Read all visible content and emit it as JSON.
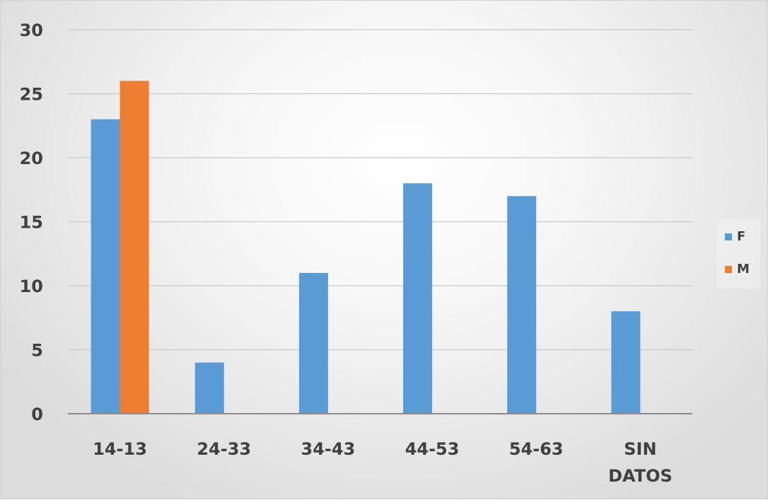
{
  "chart_data": {
    "type": "bar",
    "title": "",
    "xlabel": "",
    "ylabel": "",
    "categories": [
      "14-13",
      "24-33",
      "34-43",
      "44-53",
      "54-63",
      "SIN DATOS"
    ],
    "series": [
      {
        "name": "F",
        "color": "#5b9bd5",
        "values": [
          23,
          4,
          11,
          18,
          17,
          8
        ]
      },
      {
        "name": "M",
        "color": "#ed7d31",
        "values": [
          26,
          null,
          null,
          null,
          null,
          null
        ]
      }
    ],
    "ylim": [
      0,
      30
    ],
    "yticks": [
      0,
      5,
      10,
      15,
      20,
      25,
      30
    ],
    "grid": true,
    "legend_position": "right"
  }
}
